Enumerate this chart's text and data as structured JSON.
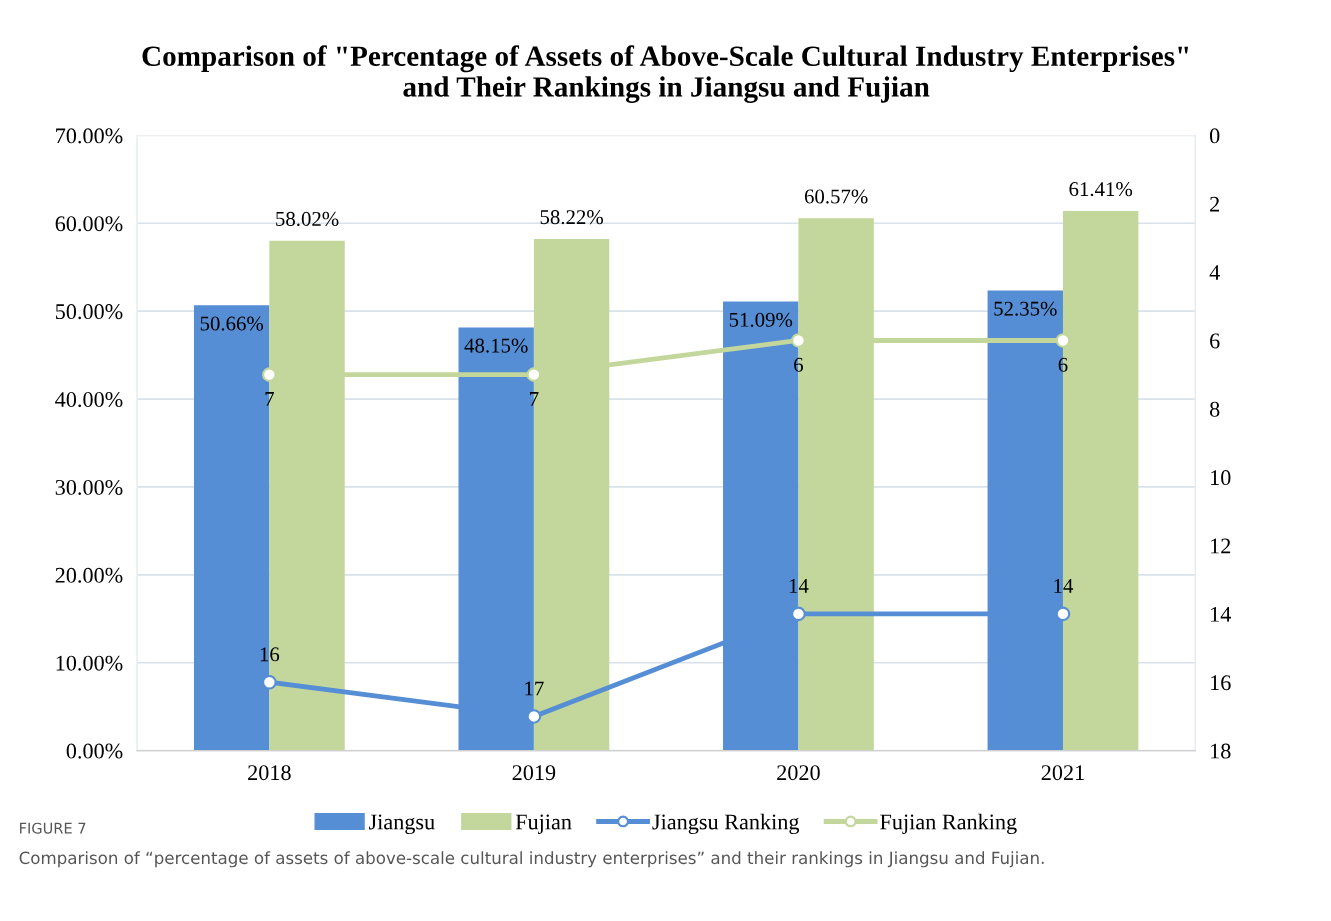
{
  "chart_data": {
    "type": "bar",
    "title": "Comparison of \"Percentage of Assets of Above-Scale Cultural Industry Enterprises\"\nand Their Rankings in Jiangsu and Fujian",
    "categories": [
      "2018",
      "2019",
      "2020",
      "2021"
    ],
    "series": [
      {
        "name": "Jiangsu",
        "color": "#558ed5",
        "values": [
          50.66,
          48.15,
          51.09,
          52.35
        ],
        "value_labels": [
          "50.66%",
          "48.15%",
          "51.09%",
          "52.35%"
        ]
      },
      {
        "name": "Fujian",
        "color": "#c3d69b",
        "values": [
          58.02,
          58.22,
          60.57,
          61.41
        ],
        "value_labels": [
          "58.02%",
          "58.22%",
          "60.57%",
          "61.41%"
        ]
      },
      {
        "name": "Jiangsu Ranking",
        "type": "line",
        "axis": "y2",
        "color": "#558ed5",
        "marker": "circle",
        "values": [
          16,
          17,
          14,
          14
        ],
        "value_labels": [
          "16",
          "17",
          "14",
          "14"
        ]
      },
      {
        "name": "Fujian Ranking",
        "type": "line",
        "axis": "y2",
        "color": "#c3d69b",
        "marker": "circle",
        "values": [
          7,
          7,
          6,
          6
        ],
        "value_labels": [
          "7",
          "7",
          "6",
          "6"
        ]
      }
    ],
    "ylim": [
      0,
      70
    ],
    "yticks": [
      {
        "value": 0,
        "label": "0.00%"
      },
      {
        "value": 10,
        "label": "10.00%"
      },
      {
        "value": 20,
        "label": "20.00%"
      },
      {
        "value": 30,
        "label": "30.00%"
      },
      {
        "value": 40,
        "label": "40.00%"
      },
      {
        "value": 50,
        "label": "50.00%"
      },
      {
        "value": 60,
        "label": "60.00%"
      },
      {
        "value": 70,
        "label": "70.00%"
      }
    ],
    "y2lim": [
      18,
      0
    ],
    "y2ticks": [
      0,
      2,
      4,
      6,
      8,
      10,
      12,
      14,
      16,
      18
    ],
    "grid": "y",
    "legend": "bottom",
    "annotations": [
      "FIGURE 7",
      "Comparison of “percentage of assets of above-scale cultural industry enterprises” and their rankings in Jiangsu and Fujian."
    ]
  }
}
